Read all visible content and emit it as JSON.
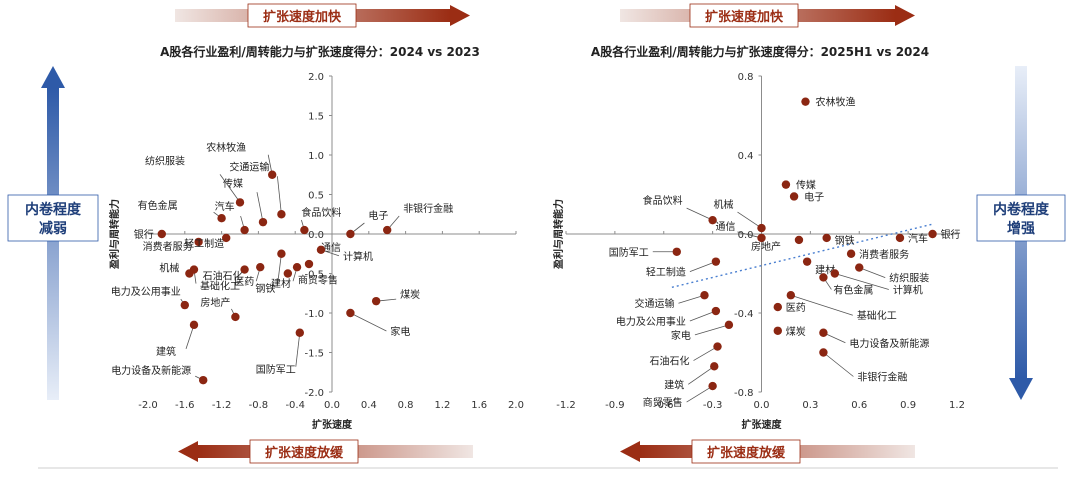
{
  "banners": {
    "top_left": "扩张速度加快",
    "top_right": "扩张速度加快",
    "bottom_left": "扩张速度放缓",
    "bottom_right": "扩张速度放缓"
  },
  "side_labels": {
    "left": [
      "内卷程度",
      "减弱"
    ],
    "right": [
      "内卷程度",
      "增强"
    ]
  },
  "colors": {
    "dot": "#8b2612",
    "banner_red": "#9b2d14",
    "banner_gray": "#e4e4e4",
    "blue": "#2e5aa8",
    "blue_light": "#e6ecf6",
    "trend": "#4a7fd0"
  },
  "chart_data": [
    {
      "type": "scatter",
      "title": "A股各行业盈利/周转能力与扩张速度得分：2024 vs 2023",
      "xlabel": "扩张速度",
      "ylabel": "盈利与周转能力",
      "xlim": [
        -2.0,
        2.0
      ],
      "ylim": [
        -2.0,
        2.0
      ],
      "xticks": [
        -2.0,
        -1.6,
        -1.2,
        -0.8,
        -0.4,
        0.0,
        0.4,
        0.8,
        1.2,
        1.6,
        2.0
      ],
      "xtick_labels": [
        "-2.0",
        "-1.6",
        "-1.2",
        "-0.8",
        "-0.4",
        "0.0",
        "0.4",
        "0.8",
        "1.2",
        "1.6",
        "2.0"
      ],
      "yticks": [
        2.0,
        1.5,
        1.0,
        0.5,
        0.0,
        -0.5,
        -1.0,
        -1.5,
        -2.0
      ],
      "ytick_labels": [
        "2.0",
        "1.5",
        "1.0",
        "0.5",
        "0.0",
        "-0.5",
        "-1.0",
        "-1.5",
        "-2.0"
      ],
      "points": [
        {
          "name": "农林牧渔",
          "x": -0.65,
          "y": 0.75
        },
        {
          "name": "交通运输",
          "x": -0.55,
          "y": 0.25
        },
        {
          "name": "传媒",
          "x": -0.75,
          "y": 0.15
        },
        {
          "name": "食品饮料",
          "x": -0.3,
          "y": 0.05
        },
        {
          "name": "纺织服装",
          "x": -1.0,
          "y": 0.4
        },
        {
          "name": "汽车",
          "x": -0.95,
          "y": 0.05
        },
        {
          "name": "有色金属",
          "x": -1.2,
          "y": 0.2
        },
        {
          "name": "银行",
          "x": -1.85,
          "y": 0.0
        },
        {
          "name": "消费者服务",
          "x": -1.45,
          "y": -0.1
        },
        {
          "name": "机械",
          "x": -1.55,
          "y": -0.5
        },
        {
          "name": "基础化工",
          "x": -1.5,
          "y": -0.45
        },
        {
          "name": "轻工制造",
          "x": -1.15,
          "y": -0.05
        },
        {
          "name": "石油石化",
          "x": -0.95,
          "y": -0.45
        },
        {
          "name": "电力及公用事业",
          "x": -1.6,
          "y": -0.9
        },
        {
          "name": "医药",
          "x": -0.78,
          "y": -0.42
        },
        {
          "name": "钢铁",
          "x": -0.55,
          "y": -0.25
        },
        {
          "name": "建筑",
          "x": -1.5,
          "y": -1.15
        },
        {
          "name": "房地产",
          "x": -1.05,
          "y": -1.05
        },
        {
          "name": "建材",
          "x": -0.38,
          "y": -0.42
        },
        {
          "name": "商贸零售",
          "x": -0.48,
          "y": -0.5
        },
        {
          "name": "通信",
          "x": -0.25,
          "y": -0.38
        },
        {
          "name": "计算机",
          "x": -0.12,
          "y": -0.2
        },
        {
          "name": "国防军工",
          "x": -0.35,
          "y": -1.25
        },
        {
          "name": "电力设备及新能源",
          "x": -1.4,
          "y": -1.85
        },
        {
          "name": "电子",
          "x": 0.2,
          "y": 0.0
        },
        {
          "name": "非银行金融",
          "x": 0.6,
          "y": 0.05
        },
        {
          "name": "煤炭",
          "x": 0.48,
          "y": -0.85
        },
        {
          "name": "家电",
          "x": 0.2,
          "y": -1.0
        }
      ]
    },
    {
      "type": "scatter",
      "title": "A股各行业盈利/周转能力与扩张速度得分：2025H1 vs 2024",
      "xlabel": "扩张速度",
      "ylabel": "盈利与周转能力",
      "xlim": [
        -1.2,
        1.2
      ],
      "ylim": [
        -0.8,
        0.8
      ],
      "xticks": [
        -1.2,
        -0.9,
        -0.6,
        -0.3,
        0.0,
        0.3,
        0.6,
        0.9,
        1.2
      ],
      "xtick_labels": [
        "-1.2",
        "-0.9",
        "-0.6",
        "-0.3",
        "0.0",
        "0.3",
        "0.6",
        "0.9",
        "1.2"
      ],
      "yticks": [
        0.8,
        0.4,
        0.0,
        -0.4,
        -0.8
      ],
      "ytick_labels": [
        "0.8",
        "0.4",
        "0.0",
        "-0.4",
        "-0.8"
      ],
      "trendline": {
        "x": [
          -0.55,
          1.05
        ],
        "y": [
          -0.27,
          0.05
        ]
      },
      "points": [
        {
          "name": "农林牧渔",
          "x": 0.27,
          "y": 0.67
        },
        {
          "name": "传媒",
          "x": 0.15,
          "y": 0.25
        },
        {
          "name": "电子",
          "x": 0.2,
          "y": 0.19
        },
        {
          "name": "机械",
          "x": 0.0,
          "y": 0.03
        },
        {
          "name": "食品饮料",
          "x": -0.3,
          "y": 0.07
        },
        {
          "name": "国防军工",
          "x": -0.52,
          "y": -0.09
        },
        {
          "name": "通信",
          "x": 0.0,
          "y": -0.02
        },
        {
          "name": "轻工制造",
          "x": -0.28,
          "y": -0.14
        },
        {
          "name": "交通运输",
          "x": -0.35,
          "y": -0.31
        },
        {
          "name": "电力及公用事业",
          "x": -0.28,
          "y": -0.39
        },
        {
          "name": "家电",
          "x": -0.2,
          "y": -0.46
        },
        {
          "name": "石油石化",
          "x": -0.27,
          "y": -0.57
        },
        {
          "name": "建筑",
          "x": -0.29,
          "y": -0.67
        },
        {
          "name": "商贸零售",
          "x": -0.3,
          "y": -0.77
        },
        {
          "name": "房地产",
          "x": 0.23,
          "y": -0.03
        },
        {
          "name": "钢铁",
          "x": 0.4,
          "y": -0.02
        },
        {
          "name": "建材",
          "x": 0.28,
          "y": -0.14
        },
        {
          "name": "有色金属",
          "x": 0.38,
          "y": -0.22
        },
        {
          "name": "消费者服务",
          "x": 0.55,
          "y": -0.1
        },
        {
          "name": "纺织服装",
          "x": 0.6,
          "y": -0.17
        },
        {
          "name": "汽车",
          "x": 0.85,
          "y": -0.02
        },
        {
          "name": "银行",
          "x": 1.05,
          "y": 0.0
        },
        {
          "name": "计算机",
          "x": 0.45,
          "y": -0.2
        },
        {
          "name": "医药",
          "x": 0.1,
          "y": -0.37
        },
        {
          "name": "基础化工",
          "x": 0.18,
          "y": -0.31
        },
        {
          "name": "煤炭",
          "x": 0.1,
          "y": -0.49
        },
        {
          "name": "电力设备及新能源",
          "x": 0.38,
          "y": -0.5
        },
        {
          "name": "非银行金融",
          "x": 0.38,
          "y": -0.6
        }
      ]
    }
  ]
}
